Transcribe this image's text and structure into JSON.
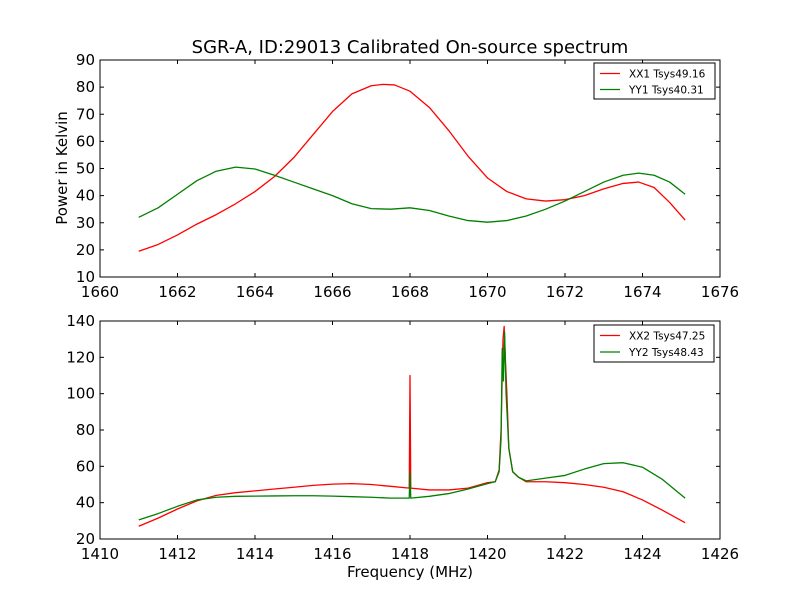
{
  "title": "SGR-A, ID:29013 Calibrated On-source spectrum",
  "colors": {
    "red": "#ff0000",
    "green": "#008000"
  },
  "chart_data": [
    {
      "type": "line",
      "ylabel": "Power in Kelvin",
      "xlabel": "",
      "xlim": [
        1660,
        1676
      ],
      "ylim": [
        10,
        90
      ],
      "xticks": [
        1660,
        1662,
        1664,
        1666,
        1668,
        1670,
        1672,
        1674,
        1676
      ],
      "yticks": [
        10,
        20,
        30,
        40,
        50,
        60,
        70,
        80,
        90
      ],
      "legend_position": "top-right",
      "series": [
        {
          "name": "XX1 Tsys49.16",
          "color": "#ff0000",
          "x": [
            1661.0,
            1661.5,
            1662.0,
            1662.5,
            1663.0,
            1663.5,
            1664.0,
            1664.5,
            1665.0,
            1665.5,
            1666.0,
            1666.5,
            1667.0,
            1667.3,
            1667.6,
            1668.0,
            1668.5,
            1669.0,
            1669.5,
            1670.0,
            1670.5,
            1671.0,
            1671.5,
            1672.0,
            1672.5,
            1673.0,
            1673.5,
            1673.9,
            1674.3,
            1674.7,
            1675.1
          ],
          "y": [
            19.5,
            22,
            25.5,
            29.5,
            33,
            37,
            41.5,
            47,
            54,
            62.5,
            71,
            77.5,
            80.5,
            81,
            80.8,
            78.5,
            72.5,
            64,
            54.5,
            46.5,
            41.5,
            38.8,
            38,
            38.5,
            40,
            42.5,
            44.5,
            45,
            43,
            37.5,
            31
          ]
        },
        {
          "name": "YY1 Tsys40.31",
          "color": "#008000",
          "x": [
            1661.0,
            1661.5,
            1662.0,
            1662.5,
            1663.0,
            1663.5,
            1664.0,
            1664.5,
            1665.0,
            1665.5,
            1666.0,
            1666.5,
            1667.0,
            1667.5,
            1668.0,
            1668.5,
            1669.0,
            1669.5,
            1670.0,
            1670.5,
            1671.0,
            1671.5,
            1672.0,
            1672.5,
            1673.0,
            1673.5,
            1673.9,
            1674.3,
            1674.7,
            1675.1
          ],
          "y": [
            32,
            35.5,
            40.5,
            45.5,
            49,
            50.5,
            49.8,
            47.5,
            45,
            42.5,
            40,
            37,
            35.2,
            35,
            35.5,
            34.5,
            32.5,
            30.8,
            30.2,
            30.8,
            32.5,
            35,
            38,
            41.5,
            45,
            47.5,
            48.3,
            47.5,
            45,
            40.5
          ]
        }
      ]
    },
    {
      "type": "line",
      "ylabel": "",
      "xlabel": "Frequency (MHz)",
      "xlim": [
        1410,
        1426
      ],
      "ylim": [
        20,
        140
      ],
      "xticks": [
        1410,
        1412,
        1414,
        1416,
        1418,
        1420,
        1422,
        1424,
        1426
      ],
      "yticks": [
        20,
        40,
        60,
        80,
        100,
        120,
        140
      ],
      "legend_position": "top-right",
      "series": [
        {
          "name": "XX2 Tsys47.25",
          "color": "#ff0000",
          "x": [
            1411.0,
            1411.5,
            1412.0,
            1412.5,
            1413.0,
            1413.5,
            1414.0,
            1414.5,
            1415.0,
            1415.5,
            1416.0,
            1416.5,
            1417.0,
            1417.5,
            1417.98,
            1418.0,
            1418.02,
            1418.5,
            1419.0,
            1419.5,
            1420.0,
            1420.2,
            1420.3,
            1420.35,
            1420.4,
            1420.43,
            1420.46,
            1420.5,
            1420.55,
            1420.65,
            1420.8,
            1421.0,
            1421.5,
            1422.0,
            1422.5,
            1423.0,
            1423.5,
            1424.0,
            1424.5,
            1425.1
          ],
          "y": [
            27,
            31.5,
            36.5,
            41,
            44,
            45.5,
            46.5,
            47.5,
            48.5,
            49.5,
            50.2,
            50.5,
            50,
            49,
            48,
            110,
            48,
            47,
            47,
            48,
            51,
            51.5,
            58,
            80,
            130,
            137,
            120,
            100,
            70,
            57,
            54,
            51.5,
            51.5,
            51,
            50,
            48.5,
            46,
            41.5,
            36,
            29
          ]
        },
        {
          "name": "YY2 Tsys48.43",
          "color": "#008000",
          "x": [
            1411.0,
            1411.5,
            1412.0,
            1412.5,
            1413.0,
            1413.5,
            1414.0,
            1414.5,
            1415.0,
            1415.5,
            1416.0,
            1416.5,
            1417.0,
            1417.5,
            1417.98,
            1418.0,
            1418.02,
            1418.5,
            1419.0,
            1419.5,
            1420.0,
            1420.2,
            1420.3,
            1420.35,
            1420.38,
            1420.41,
            1420.44,
            1420.48,
            1420.55,
            1420.65,
            1420.8,
            1421.0,
            1421.5,
            1422.0,
            1422.5,
            1423.0,
            1423.5,
            1424.0,
            1424.5,
            1425.1
          ],
          "y": [
            30.5,
            34,
            38,
            41.5,
            43,
            43.5,
            43.6,
            43.7,
            43.8,
            43.8,
            43.6,
            43.3,
            43,
            42.5,
            42.5,
            57,
            42.5,
            43.5,
            45,
            47.5,
            50.5,
            51.5,
            57,
            75,
            125,
            107,
            134,
            100,
            70,
            57,
            54,
            52,
            53.5,
            55,
            58.5,
            61.5,
            62,
            59.5,
            53,
            42.5
          ]
        }
      ]
    }
  ]
}
